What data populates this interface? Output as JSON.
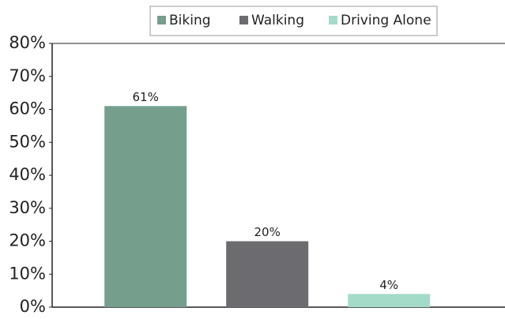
{
  "chart_data": {
    "type": "bar",
    "categories": [
      null
    ],
    "series": [
      {
        "name": "Biking",
        "color": "#759e8d",
        "values": [
          61
        ],
        "value_labels": [
          "61%"
        ]
      },
      {
        "name": "Walking",
        "color": "#6c6c70",
        "values": [
          20
        ],
        "value_labels": [
          "20%"
        ]
      },
      {
        "name": "Driving Alone",
        "color": "#a4dbc8",
        "values": [
          4
        ],
        "value_labels": [
          "4%"
        ]
      }
    ],
    "ylim": [
      0,
      80
    ],
    "yticks": [
      {
        "value": 0,
        "label": "0%"
      },
      {
        "value": 10,
        "label": "10%"
      },
      {
        "value": 20,
        "label": "20%"
      },
      {
        "value": 30,
        "label": "30%"
      },
      {
        "value": 40,
        "label": "40%"
      },
      {
        "value": 50,
        "label": "50%"
      },
      {
        "value": 60,
        "label": "60%"
      },
      {
        "value": 70,
        "label": "70%"
      },
      {
        "value": 80,
        "label": "80%"
      }
    ],
    "legend": "top"
  }
}
